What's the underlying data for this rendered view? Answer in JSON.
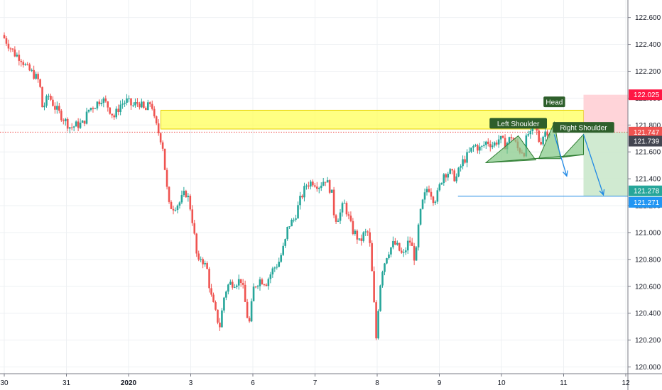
{
  "chart_data": {
    "type": "candlestick",
    "title": "",
    "xlabel": "",
    "ylabel": "",
    "grid": true,
    "x_ticks": [
      {
        "label": "30",
        "t": 0
      },
      {
        "label": "31",
        "t": 1
      },
      {
        "label": "2020",
        "t": 2,
        "bold": true
      },
      {
        "label": "3",
        "t": 3
      },
      {
        "label": "6",
        "t": 4
      },
      {
        "label": "7",
        "t": 5
      },
      {
        "label": "8",
        "t": 6
      },
      {
        "label": "9",
        "t": 7
      },
      {
        "label": "10",
        "t": 8
      },
      {
        "label": "11",
        "t": 9
      },
      {
        "label": "12",
        "t": 10
      }
    ],
    "y_ticks": [
      "122.600",
      "122.400",
      "122.200",
      "122.000",
      "121.800",
      "121.600",
      "121.400",
      "121.200",
      "121.000",
      "120.800",
      "120.600",
      "120.400",
      "120.200",
      "120.000"
    ],
    "ylim": [
      119.95,
      122.73
    ],
    "xlim": [
      0,
      10.05
    ],
    "price_path": [
      [
        0.0,
        122.47
      ],
      [
        0.1,
        122.4
      ],
      [
        0.2,
        122.33
      ],
      [
        0.3,
        122.3
      ],
      [
        0.4,
        122.22
      ],
      [
        0.5,
        122.18
      ],
      [
        0.6,
        122.12
      ],
      [
        0.65,
        121.92
      ],
      [
        0.75,
        122.02
      ],
      [
        0.85,
        121.93
      ],
      [
        1.0,
        121.84
      ],
      [
        1.1,
        121.78
      ],
      [
        1.2,
        121.8
      ],
      [
        1.3,
        121.81
      ],
      [
        1.4,
        121.92
      ],
      [
        1.5,
        121.95
      ],
      [
        1.6,
        122.0
      ],
      [
        1.7,
        121.94
      ],
      [
        1.8,
        121.86
      ],
      [
        1.9,
        121.95
      ],
      [
        2.0,
        121.98
      ],
      [
        2.1,
        121.94
      ],
      [
        2.2,
        121.97
      ],
      [
        2.3,
        121.9
      ],
      [
        2.4,
        121.98
      ],
      [
        2.45,
        121.83
      ],
      [
        2.52,
        121.74
      ],
      [
        2.58,
        121.66
      ],
      [
        2.63,
        121.42
      ],
      [
        2.68,
        121.2
      ],
      [
        2.75,
        121.19
      ],
      [
        2.85,
        121.22
      ],
      [
        2.95,
        121.3
      ],
      [
        3.0,
        121.25
      ],
      [
        3.05,
        121.13
      ],
      [
        3.1,
        120.95
      ],
      [
        3.15,
        120.75
      ],
      [
        3.2,
        120.82
      ],
      [
        3.3,
        120.72
      ],
      [
        3.35,
        120.55
      ],
      [
        3.42,
        120.42
      ],
      [
        3.5,
        120.3
      ],
      [
        3.58,
        120.55
      ],
      [
        3.65,
        120.62
      ],
      [
        3.75,
        120.63
      ],
      [
        3.85,
        120.65
      ],
      [
        3.92,
        120.45
      ],
      [
        3.97,
        120.3
      ],
      [
        4.05,
        120.6
      ],
      [
        4.15,
        120.65
      ],
      [
        4.25,
        120.63
      ],
      [
        4.35,
        120.72
      ],
      [
        4.45,
        120.78
      ],
      [
        4.55,
        120.92
      ],
      [
        4.6,
        121.05
      ],
      [
        4.7,
        121.1
      ],
      [
        4.8,
        121.25
      ],
      [
        4.9,
        121.36
      ],
      [
        5.0,
        121.38
      ],
      [
        5.1,
        121.35
      ],
      [
        5.2,
        121.4
      ],
      [
        5.3,
        121.3
      ],
      [
        5.35,
        121.1
      ],
      [
        5.42,
        121.12
      ],
      [
        5.5,
        121.22
      ],
      [
        5.55,
        121.15
      ],
      [
        5.63,
        121.02
      ],
      [
        5.7,
        120.98
      ],
      [
        5.75,
        120.92
      ],
      [
        5.82,
        120.99
      ],
      [
        5.9,
        121.0
      ],
      [
        5.95,
        120.7
      ],
      [
        6.0,
        120.35
      ],
      [
        6.02,
        120.2
      ],
      [
        6.05,
        120.43
      ],
      [
        6.1,
        120.7
      ],
      [
        6.2,
        120.85
      ],
      [
        6.3,
        120.92
      ],
      [
        6.35,
        120.9
      ],
      [
        6.45,
        120.82
      ],
      [
        6.55,
        120.95
      ],
      [
        6.6,
        120.88
      ],
      [
        6.65,
        120.78
      ],
      [
        6.7,
        121.05
      ],
      [
        6.75,
        121.2
      ],
      [
        6.85,
        121.35
      ],
      [
        6.95,
        121.24
      ],
      [
        7.0,
        121.28
      ],
      [
        7.05,
        121.36
      ],
      [
        7.1,
        121.44
      ],
      [
        7.2,
        121.45
      ],
      [
        7.3,
        121.4
      ],
      [
        7.4,
        121.52
      ],
      [
        7.5,
        121.58
      ],
      [
        7.6,
        121.65
      ],
      [
        7.7,
        121.62
      ],
      [
        7.8,
        121.68
      ],
      [
        7.9,
        121.65
      ],
      [
        8.0,
        121.7
      ],
      [
        8.1,
        121.65
      ],
      [
        8.2,
        121.72
      ],
      [
        8.3,
        121.62
      ],
      [
        8.4,
        121.6
      ],
      [
        8.45,
        121.74
      ],
      [
        8.5,
        121.72
      ],
      [
        8.55,
        121.85
      ],
      [
        8.6,
        121.75
      ],
      [
        8.65,
        121.66
      ],
      [
        8.7,
        121.72
      ],
      [
        8.75,
        121.76
      ],
      [
        8.8,
        121.75
      ]
    ],
    "annotations": {
      "resistance_zone": {
        "x": [
          2.52,
          9.32
        ],
        "y": [
          121.77,
          121.91
        ]
      },
      "current_price_line": {
        "y": 121.747
      },
      "neckline": {
        "x": [
          7.75,
          9.32
        ],
        "y": [
          121.52,
          121.58
        ]
      },
      "target_line": {
        "x": [
          7.3,
          9.95
        ],
        "y": 121.271
      },
      "stop_zone": {
        "x": [
          9.32,
          10.05
        ],
        "y": [
          121.75,
          122.025
        ]
      },
      "target_zone": {
        "x": [
          9.32,
          10.05
        ],
        "y": [
          121.271,
          121.75
        ]
      },
      "left_shoulder_triangle": [
        [
          7.75,
          121.52
        ],
        [
          8.27,
          121.72
        ],
        [
          8.55,
          121.54
        ]
      ],
      "head_triangle": [
        [
          8.6,
          121.55
        ],
        [
          8.85,
          121.82
        ],
        [
          8.95,
          121.55
        ]
      ],
      "right_shoulder_triangle": [
        [
          8.98,
          121.56
        ],
        [
          9.32,
          121.73
        ],
        [
          9.32,
          121.58
        ]
      ],
      "projection_arrow_1": [
        [
          8.85,
          121.73
        ],
        [
          9.05,
          121.42
        ]
      ],
      "projection_arrow_2": [
        [
          9.32,
          121.73
        ],
        [
          9.64,
          121.28
        ]
      ],
      "labels": [
        {
          "text": "Left Shoulder",
          "x": 8.27,
          "y": 121.81
        },
        {
          "text": "Head",
          "x": 8.85,
          "y": 121.97
        },
        {
          "text": "Right Shoulder",
          "x": 9.32,
          "y": 121.78
        }
      ]
    },
    "price_tags": [
      {
        "text": "122.025",
        "y": 122.025,
        "color": "#ff1744"
      },
      {
        "text": "121.747",
        "y": 121.747,
        "color": "#ef5350"
      },
      {
        "text": "121.739",
        "y": 121.68,
        "color": "#434651"
      },
      {
        "text": "121.278",
        "y": 121.31,
        "color": "#26a69a"
      },
      {
        "text": "121.271",
        "y": 121.225,
        "color": "#2196f3"
      }
    ],
    "colors": {
      "up": "#26a69a",
      "down": "#ef5350",
      "grid": "#eef0f3",
      "axis": "#787b86",
      "resistance": "#ffff5a",
      "resistance_border": "#e6d200",
      "triangle": "#81c784",
      "triangle_border": "#2e7d32",
      "label_bg": "#2e5f2b",
      "arrow": "#1e88e5",
      "stop_zone": "#ffcdd2",
      "target_zone": "#c8e6c9",
      "current_price": "#ef5350"
    }
  }
}
